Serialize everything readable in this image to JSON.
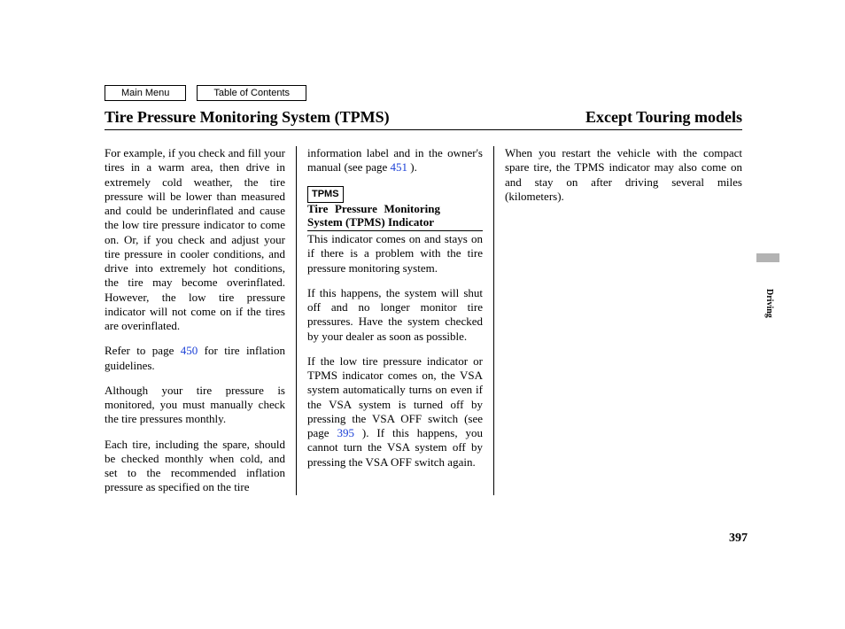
{
  "nav": {
    "main_menu": "Main Menu",
    "toc": "Table of Contents"
  },
  "header": {
    "title": "Tire Pressure Monitoring System (TPMS)",
    "subtitle": "Except Touring models"
  },
  "side_tab": "Driving",
  "page_number": "397",
  "links": {
    "p450": "450",
    "p451": "451",
    "p395": "395"
  },
  "col1": {
    "p1": "For example, if you check and fill your tires in a warm area, then drive in extremely cold weather, the tire pressure will be lower than measured and could be underinflated and cause the low tire pressure indicator to come on. Or, if you check and adjust your tire pressure in cooler conditions, and drive into extremely hot conditions, the tire may become overinflated. However, the low tire pressure indicator will not come on if the tires are overinflated.",
    "p2a": "Refer to page ",
    "p2b": " for tire inflation guidelines.",
    "p3": "Although your tire pressure is monitored, you must manually check the tire pressures monthly.",
    "p4": "Each tire, including the spare, should be checked monthly when cold, and set to the recommended inflation pressure as specified on the tire"
  },
  "col2": {
    "p0a": "information label and in the owner's manual (see page ",
    "p0b": " ).",
    "tpms_box": "TPMS",
    "tpms_title": "Tire Pressure Monitoring System (TPMS) Indicator",
    "p1": "This indicator comes on and stays on if there is a problem with the tire pressure monitoring system.",
    "p2": "If this happens, the system will shut off and no longer monitor tire pressures. Have the system checked by your dealer as soon as possible.",
    "p3a": "If the low tire pressure indicator or TPMS indicator comes on, the VSA system automatically turns on even if the VSA system is turned off by pressing the VSA OFF switch (see page ",
    "p3b": " ). If this happens, you cannot turn the VSA system off by pressing the VSA OFF switch again."
  },
  "col3": {
    "p1": "When you restart the vehicle with the compact spare tire, the TPMS indicator may also come on and stay on after driving several miles (kilometers)."
  }
}
